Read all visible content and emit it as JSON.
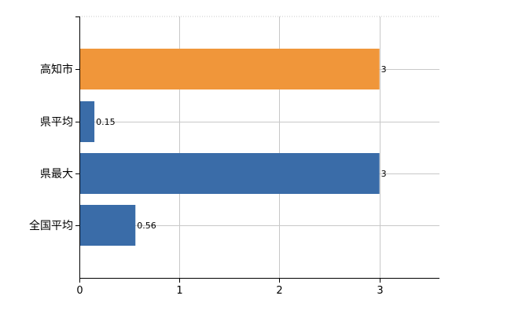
{
  "chart_data": {
    "type": "bar",
    "orientation": "horizontal",
    "categories": [
      "高知市",
      "県平均",
      "県最大",
      "全国平均"
    ],
    "values": [
      3,
      0.15,
      3,
      0.56
    ],
    "data_labels": [
      "3",
      "0.15",
      "3",
      "0.56"
    ],
    "bar_colors": [
      "#f0963a",
      "#3a6ca8",
      "#3a6ca8",
      "#3a6ca8"
    ],
    "xlim": [
      0,
      3.6
    ],
    "x_ticks": [
      0,
      1,
      2,
      3
    ],
    "x_tick_labels": [
      "0",
      "1",
      "2",
      "3"
    ],
    "grid": true,
    "title": "",
    "xlabel": "",
    "ylabel": ""
  }
}
